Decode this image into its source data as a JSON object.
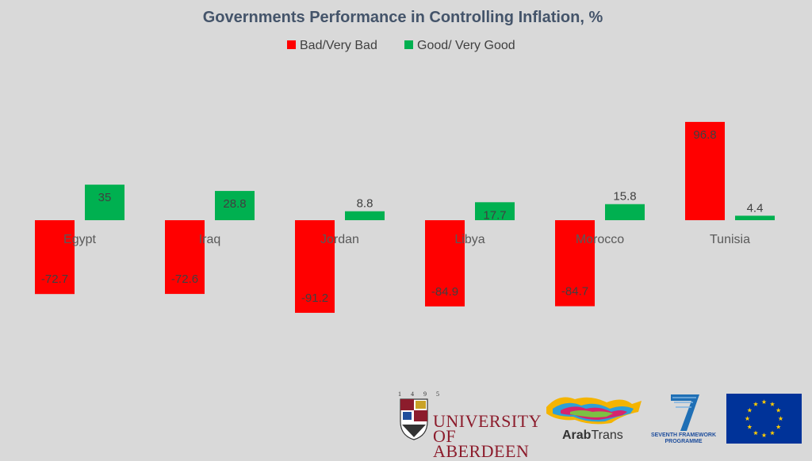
{
  "chart_data": {
    "type": "bar",
    "title": "Governments Performance in Controlling Inflation, %",
    "categories": [
      "Egypt",
      "Iraq",
      "Jordan",
      "Libya",
      "Morocco",
      "Tunisia"
    ],
    "series": [
      {
        "name": "Bad/Very Bad",
        "color": "#ff0000",
        "values": [
          -72.7,
          -72.6,
          -91.2,
          -84.9,
          -84.7,
          96.8
        ]
      },
      {
        "name": "Good/ Very Good",
        "color": "#00b050",
        "values": [
          35,
          28.8,
          8.8,
          17.7,
          15.8,
          4.4
        ]
      }
    ],
    "value_labels": [
      [
        "-72.7",
        "-72.6",
        "-91.2",
        "-84.9",
        "-84.7",
        "96.8"
      ],
      [
        "35",
        "28.8",
        "8.8",
        "17.7",
        "15.8",
        "4.4"
      ]
    ],
    "ylim": [
      -100,
      100
    ],
    "xlabel": "",
    "ylabel": "",
    "legend": "top-center",
    "grid": false
  },
  "logos": {
    "aberdeen": {
      "year": "1495",
      "line1": "UNIVERSITY",
      "line2": "OF ABERDEEN"
    },
    "arabtrans": {
      "bold": "Arab",
      "rest": "Trans"
    },
    "fp7": {
      "line1": "SEVENTH FRAMEWORK",
      "line2": "PROGRAMME"
    },
    "eu": {
      "name": "EU flag"
    }
  }
}
